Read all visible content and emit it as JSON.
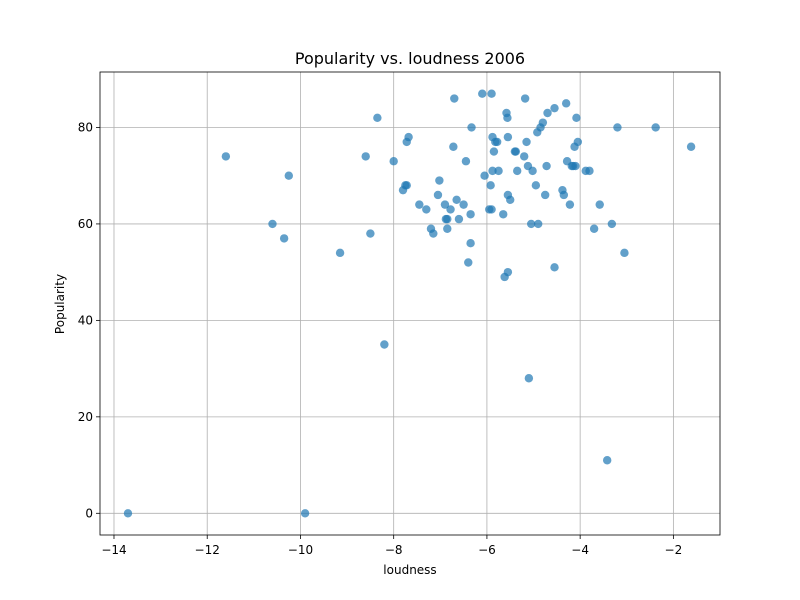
{
  "chart_data": {
    "type": "scatter",
    "title": "Popularity vs. loudness 2006",
    "xlabel": "loudness",
    "ylabel": "Popularity",
    "xlim": [
      -14.3,
      -1.0
    ],
    "ylim": [
      -4.5,
      91.5
    ],
    "xticks": [
      -14,
      -12,
      -10,
      -8,
      -6,
      -4,
      -2
    ],
    "yticks": [
      0,
      20,
      40,
      60,
      80
    ],
    "grid": true,
    "series": [
      {
        "color": "#1f77b4",
        "points": [
          [
            -13.7,
            0
          ],
          [
            -9.9,
            0
          ],
          [
            -11.6,
            74
          ],
          [
            -10.6,
            60
          ],
          [
            -10.35,
            57
          ],
          [
            -10.25,
            70
          ],
          [
            -9.15,
            54
          ],
          [
            -8.2,
            35
          ],
          [
            -8.6,
            74
          ],
          [
            -8.5,
            58
          ],
          [
            -8.35,
            82
          ],
          [
            -8.0,
            73
          ],
          [
            -7.8,
            67
          ],
          [
            -7.75,
            68
          ],
          [
            -7.72,
            68
          ],
          [
            -7.72,
            77
          ],
          [
            -7.68,
            78
          ],
          [
            -7.45,
            64
          ],
          [
            -7.3,
            63
          ],
          [
            -7.2,
            59
          ],
          [
            -7.15,
            58
          ],
          [
            -7.05,
            66
          ],
          [
            -7.02,
            69
          ],
          [
            -6.9,
            64
          ],
          [
            -6.88,
            61
          ],
          [
            -6.85,
            61
          ],
          [
            -6.85,
            59
          ],
          [
            -6.78,
            63
          ],
          [
            -6.72,
            76
          ],
          [
            -6.7,
            86
          ],
          [
            -6.65,
            65
          ],
          [
            -6.6,
            61
          ],
          [
            -6.5,
            64
          ],
          [
            -6.45,
            73
          ],
          [
            -6.4,
            52
          ],
          [
            -6.35,
            62
          ],
          [
            -6.35,
            56
          ],
          [
            -6.33,
            80
          ],
          [
            -6.1,
            87
          ],
          [
            -6.05,
            70
          ],
          [
            -5.95,
            63
          ],
          [
            -5.9,
            63
          ],
          [
            -5.92,
            68
          ],
          [
            -5.88,
            71
          ],
          [
            -5.88,
            78
          ],
          [
            -5.9,
            87
          ],
          [
            -5.85,
            75
          ],
          [
            -5.82,
            77
          ],
          [
            -5.78,
            77
          ],
          [
            -5.75,
            71
          ],
          [
            -5.65,
            62
          ],
          [
            -5.62,
            49
          ],
          [
            -5.55,
            50
          ],
          [
            -5.58,
            83
          ],
          [
            -5.56,
            82
          ],
          [
            -5.55,
            78
          ],
          [
            -5.55,
            66
          ],
          [
            -5.5,
            65
          ],
          [
            -5.4,
            75
          ],
          [
            -5.38,
            75
          ],
          [
            -5.35,
            71
          ],
          [
            -5.2,
            74
          ],
          [
            -5.18,
            86
          ],
          [
            -5.15,
            77
          ],
          [
            -5.12,
            72
          ],
          [
            -5.1,
            28
          ],
          [
            -5.05,
            60
          ],
          [
            -5.02,
            71
          ],
          [
            -4.95,
            68
          ],
          [
            -4.92,
            79
          ],
          [
            -4.9,
            60
          ],
          [
            -4.85,
            80
          ],
          [
            -4.8,
            81
          ],
          [
            -4.75,
            66
          ],
          [
            -4.72,
            72
          ],
          [
            -4.7,
            83
          ],
          [
            -4.55,
            51
          ],
          [
            -4.55,
            84
          ],
          [
            -4.38,
            67
          ],
          [
            -4.35,
            66
          ],
          [
            -4.3,
            85
          ],
          [
            -4.28,
            73
          ],
          [
            -4.22,
            64
          ],
          [
            -4.18,
            72
          ],
          [
            -4.15,
            72
          ],
          [
            -4.12,
            76
          ],
          [
            -4.1,
            72
          ],
          [
            -4.08,
            82
          ],
          [
            -4.05,
            77
          ],
          [
            -3.88,
            71
          ],
          [
            -3.8,
            71
          ],
          [
            -3.7,
            59
          ],
          [
            -3.58,
            64
          ],
          [
            -3.42,
            11
          ],
          [
            -3.32,
            60
          ],
          [
            -3.2,
            80
          ],
          [
            -3.05,
            54
          ],
          [
            -2.38,
            80
          ],
          [
            -1.62,
            76
          ]
        ]
      }
    ]
  }
}
